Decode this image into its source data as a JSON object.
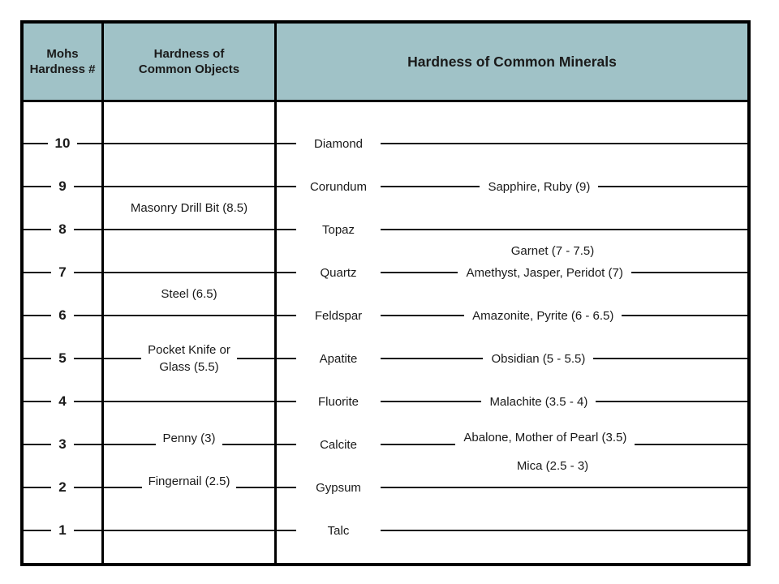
{
  "headers": {
    "mohs_number": "Mohs Hardness #",
    "common_objects": "Hardness of Common Objects",
    "common_minerals": "Hardness of Common Minerals"
  },
  "colors": {
    "header_background": "#a0c2c7",
    "border": "#000000",
    "line": "#161616",
    "page_background": "#ffffff"
  },
  "levels": [
    {
      "number": "10",
      "mineral": "Diamond"
    },
    {
      "number": "9",
      "mineral": "Corundum",
      "extra_minerals": "Sapphire, Ruby (9)"
    },
    {
      "number": "8",
      "mineral": "Topaz"
    },
    {
      "number": "7",
      "mineral": "Quartz",
      "extra_minerals": "Amethyst, Jasper, Peridot (7)"
    },
    {
      "number": "6",
      "mineral": "Feldspar",
      "extra_minerals": "Amazonite, Pyrite (6 - 6.5)"
    },
    {
      "number": "5",
      "mineral": "Apatite",
      "extra_minerals": "Obsidian (5 - 5.5)",
      "object_lines": [
        "Pocket Knife or",
        "Glass (5.5)"
      ]
    },
    {
      "number": "4",
      "mineral": "Fluorite",
      "extra_minerals": "Malachite (3.5 - 4)"
    },
    {
      "number": "3",
      "mineral": "Calcite",
      "extra_minerals": "Abalone, Mother of Pearl (3.5)",
      "extra_raised": true,
      "object": "Penny (3)"
    },
    {
      "number": "2",
      "mineral": "Gypsum",
      "object": "Fingernail (2.5)"
    },
    {
      "number": "1",
      "mineral": "Talc"
    }
  ],
  "floating_labels": [
    {
      "text": "Masonry Drill Bit (8.5)",
      "column": "objects",
      "hardness": 8.5
    },
    {
      "text": "Steel (6.5)",
      "column": "objects",
      "hardness": 6.5
    },
    {
      "text": "Garnet (7 - 7.5)",
      "column": "minerals",
      "hardness": 7.5
    },
    {
      "text": "Mica (2.5 - 3)",
      "column": "minerals",
      "hardness": 2.5
    }
  ]
}
